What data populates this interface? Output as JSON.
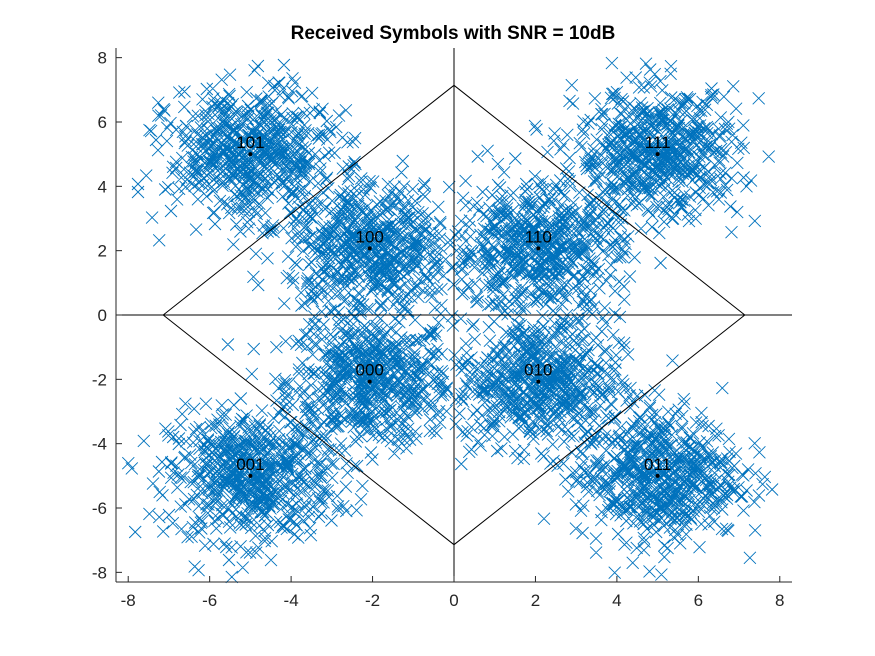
{
  "chart_data": {
    "type": "scatter",
    "title": "Received Symbols with SNR = 10dB",
    "xlabel": "",
    "ylabel": "",
    "xlim": [
      -8.3,
      8.3
    ],
    "ylim": [
      -8.3,
      8.3
    ],
    "xticks": [
      -8,
      -6,
      -4,
      -2,
      0,
      2,
      4,
      6,
      8
    ],
    "yticks": [
      -8,
      -6,
      -4,
      -2,
      0,
      2,
      4,
      6,
      8
    ],
    "grid": false,
    "legend": "none",
    "marker_color": "#0072BD",
    "line_color": "#000000",
    "constellation": [
      {
        "label": "000",
        "x": -2.07,
        "y": -2.07
      },
      {
        "label": "001",
        "x": -5.0,
        "y": -5.0
      },
      {
        "label": "010",
        "x": 2.07,
        "y": -2.07
      },
      {
        "label": "011",
        "x": 5.0,
        "y": -5.0
      },
      {
        "label": "100",
        "x": -2.07,
        "y": 2.07
      },
      {
        "label": "101",
        "x": -5.0,
        "y": 5.0
      },
      {
        "label": "110",
        "x": 2.07,
        "y": 2.07
      },
      {
        "label": "111",
        "x": 5.0,
        "y": 5.0
      }
    ],
    "received_spread": {
      "samples_per_symbol": 620,
      "sigma": 1.0
    },
    "decision_boundaries": [
      {
        "x": [
          0,
          0
        ],
        "y": [
          -8.3,
          8.3
        ]
      },
      {
        "x": [
          -8.3,
          8.3
        ],
        "y": [
          0,
          0
        ]
      },
      {
        "x": [
          -7.14,
          0,
          7.14,
          0,
          -7.14
        ],
        "y": [
          0,
          7.14,
          0,
          -7.14,
          0
        ]
      }
    ]
  }
}
